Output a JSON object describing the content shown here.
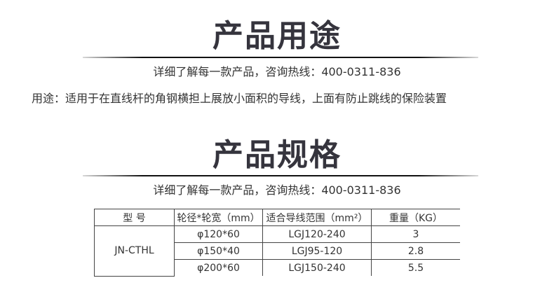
{
  "section1": {
    "title": "产品用途",
    "contact": "详细了解每一款产品，咨询热线：400-0311-836",
    "usage": "用途：适用于在直线杆的角钢横担上展放小面积的导线，上面有防止跳线的保险装置"
  },
  "section2": {
    "title": "产品规格",
    "contact": "详细了解每一款产品，咨询热线：400-0311-836"
  },
  "table": {
    "headers": [
      "型  号",
      "轮径*轮宽（mm）",
      "适合导线范围（mm²）",
      "重量（KG）"
    ],
    "model": "JN-CTHL",
    "rows": [
      {
        "wheel": "φ120*60",
        "range": "LGJ120-240",
        "weight": "3"
      },
      {
        "wheel": "φ150*40",
        "range": "LGJ95-120",
        "weight": "2.8"
      },
      {
        "wheel": "φ200*60",
        "range": "LGJ150-240",
        "weight": "5.5"
      }
    ]
  }
}
